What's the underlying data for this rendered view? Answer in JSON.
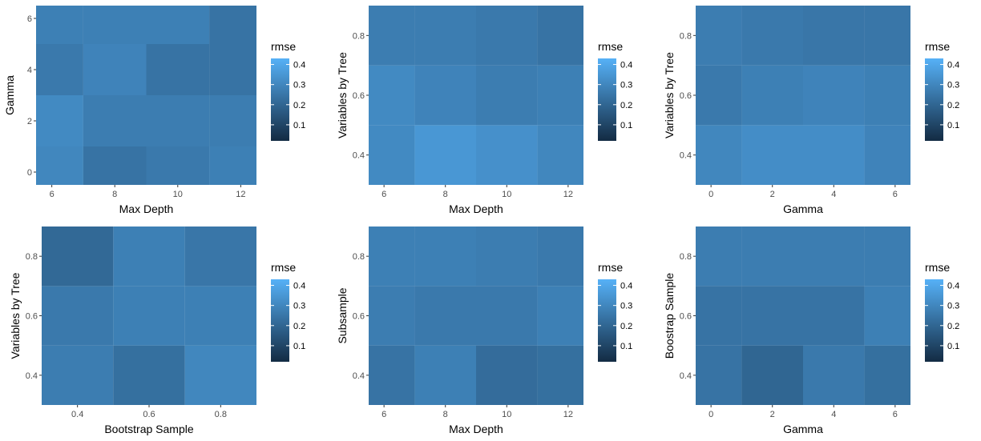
{
  "chart_data": [
    {
      "type": "heatmap",
      "xlabel": "Max Depth",
      "ylabel": "Gamma",
      "x_categories": [
        6,
        8,
        10,
        12
      ],
      "y_categories": [
        0,
        2,
        4,
        6
      ],
      "x_ticks": [
        "6",
        "8",
        "10",
        "12"
      ],
      "y_ticks": [
        "0",
        "2",
        "4",
        "6"
      ],
      "xlim": [
        5.5,
        12.5
      ],
      "ylim": [
        -0.5,
        6.5
      ],
      "values": [
        [
          0.3,
          0.24,
          0.26,
          0.28
        ],
        [
          0.31,
          0.27,
          0.27,
          0.27
        ],
        [
          0.26,
          0.29,
          0.24,
          0.24
        ],
        [
          0.28,
          0.28,
          0.28,
          0.24
        ]
      ],
      "legend": {
        "title": "rmse",
        "ticks": [
          "0.1",
          "0.2",
          "0.3",
          "0.4"
        ],
        "range": [
          0.02,
          0.43
        ]
      }
    },
    {
      "type": "heatmap",
      "xlabel": "Max Depth",
      "ylabel": "Variables by Tree",
      "x_categories": [
        6,
        8,
        10,
        12
      ],
      "y_categories": [
        0.4,
        0.6,
        0.8
      ],
      "x_ticks": [
        "6",
        "8",
        "10",
        "12"
      ],
      "y_ticks": [
        "0.4",
        "0.6",
        "0.8"
      ],
      "xlim": [
        5.5,
        12.5
      ],
      "ylim": [
        0.3,
        0.9
      ],
      "values": [
        [
          0.31,
          0.35,
          0.33,
          0.3
        ],
        [
          0.31,
          0.29,
          0.27,
          0.28
        ],
        [
          0.27,
          0.27,
          0.26,
          0.24
        ]
      ],
      "legend": {
        "title": "rmse",
        "ticks": [
          "0.1",
          "0.2",
          "0.3",
          "0.4"
        ],
        "range": [
          0.02,
          0.43
        ]
      }
    },
    {
      "type": "heatmap",
      "xlabel": "Gamma",
      "ylabel": "Variables by Tree",
      "x_categories": [
        0,
        2,
        4,
        6
      ],
      "y_categories": [
        0.4,
        0.6,
        0.8
      ],
      "x_ticks": [
        "0",
        "2",
        "4",
        "6"
      ],
      "y_ticks": [
        "0.4",
        "0.6",
        "0.8"
      ],
      "xlim": [
        -0.5,
        6.5
      ],
      "ylim": [
        0.3,
        0.9
      ],
      "values": [
        [
          0.3,
          0.32,
          0.32,
          0.29
        ],
        [
          0.26,
          0.28,
          0.29,
          0.28
        ],
        [
          0.27,
          0.26,
          0.25,
          0.25
        ]
      ],
      "legend": {
        "title": "rmse",
        "ticks": [
          "0.1",
          "0.2",
          "0.3",
          "0.4"
        ],
        "range": [
          0.02,
          0.43
        ]
      }
    },
    {
      "type": "heatmap",
      "xlabel": "Bootstrap Sample",
      "ylabel": "Variables by Tree",
      "x_categories": [
        0.4,
        0.6,
        0.8
      ],
      "y_categories": [
        0.4,
        0.6,
        0.8
      ],
      "x_ticks": [
        "0.4",
        "0.6",
        "0.8"
      ],
      "y_ticks": [
        "0.4",
        "0.6",
        "0.8"
      ],
      "xlim": [
        0.3,
        0.9
      ],
      "ylim": [
        0.3,
        0.9
      ],
      "values": [
        [
          0.27,
          0.23,
          0.3
        ],
        [
          0.26,
          0.28,
          0.28
        ],
        [
          0.21,
          0.28,
          0.25
        ]
      ],
      "legend": {
        "title": "rmse",
        "ticks": [
          "0.1",
          "0.2",
          "0.3",
          "0.4"
        ],
        "range": [
          0.02,
          0.43
        ]
      }
    },
    {
      "type": "heatmap",
      "xlabel": "Max Depth",
      "ylabel": "Subsample",
      "x_categories": [
        6,
        8,
        10,
        12
      ],
      "y_categories": [
        0.4,
        0.6,
        0.8
      ],
      "x_ticks": [
        "6",
        "8",
        "10",
        "12"
      ],
      "y_ticks": [
        "0.4",
        "0.6",
        "0.8"
      ],
      "xlim": [
        5.5,
        12.5
      ],
      "ylim": [
        0.3,
        0.9
      ],
      "values": [
        [
          0.24,
          0.28,
          0.22,
          0.23
        ],
        [
          0.27,
          0.26,
          0.26,
          0.28
        ],
        [
          0.28,
          0.28,
          0.27,
          0.26
        ]
      ],
      "legend": {
        "title": "rmse",
        "ticks": [
          "0.1",
          "0.2",
          "0.3",
          "0.4"
        ],
        "range": [
          0.02,
          0.43
        ]
      }
    },
    {
      "type": "heatmap",
      "xlabel": "Gamma",
      "ylabel": "Boostrap Sample",
      "x_categories": [
        0,
        2,
        4,
        6
      ],
      "y_categories": [
        0.4,
        0.6,
        0.8
      ],
      "x_ticks": [
        "0",
        "2",
        "4",
        "6"
      ],
      "y_ticks": [
        "0.4",
        "0.6",
        "0.8"
      ],
      "xlim": [
        -0.5,
        6.5
      ],
      "ylim": [
        0.3,
        0.9
      ],
      "values": [
        [
          0.24,
          0.2,
          0.26,
          0.23
        ],
        [
          0.24,
          0.24,
          0.24,
          0.28
        ],
        [
          0.27,
          0.27,
          0.27,
          0.27
        ]
      ],
      "legend": {
        "title": "rmse",
        "ticks": [
          "0.1",
          "0.2",
          "0.3",
          "0.4"
        ],
        "range": [
          0.02,
          0.43
        ]
      }
    }
  ],
  "colors": {
    "low": "#132B43",
    "high": "#56B1F7",
    "tick": "#4d4d4d",
    "text": "#000000"
  }
}
